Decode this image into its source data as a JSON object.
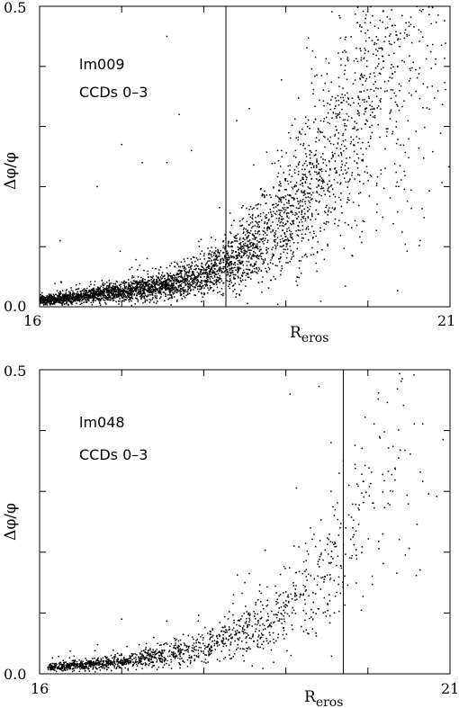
{
  "chart_data": [
    {
      "type": "scatter",
      "field": "lm009",
      "ccds": "CCDs 0–3",
      "xlabel_main": "R",
      "xlabel_sub": "eros",
      "ylabel": "Δφ/φ",
      "xlim": [
        16,
        21
      ],
      "ylim": [
        0.0,
        0.5
      ],
      "x_tick_labels": [
        "16",
        "21"
      ],
      "y_tick_labels": [
        "0.0",
        "0.5"
      ],
      "x_minor_ticks": [
        16,
        17,
        18,
        19,
        20,
        21
      ],
      "y_minor_ticks": [
        0.0,
        0.1,
        0.2,
        0.3,
        0.4,
        0.5
      ],
      "vline_x": 18.27,
      "grid": false,
      "density": "high",
      "n_points": 4200,
      "scatter_envelope": {
        "floor": 0.004,
        "scale": 0.0015,
        "rate": 1.18,
        "ridge": [
          [
            16.0,
            0.01
          ],
          [
            17.0,
            0.025
          ],
          [
            17.5,
            0.035
          ],
          [
            18.0,
            0.05
          ],
          [
            18.5,
            0.09
          ],
          [
            19.0,
            0.15
          ],
          [
            19.5,
            0.24
          ],
          [
            20.0,
            0.36
          ],
          [
            20.5,
            0.48
          ]
        ],
        "spread_frac": 0.32
      },
      "outliers": [
        [
          17.55,
          0.45
        ],
        [
          17.7,
          0.32
        ],
        [
          17.85,
          0.26
        ],
        [
          17.55,
          0.24
        ],
        [
          17.25,
          0.24
        ],
        [
          18.4,
          0.31
        ],
        [
          17.0,
          0.27
        ],
        [
          16.7,
          0.2
        ],
        [
          16.25,
          0.11
        ],
        [
          18.9,
          0.26
        ]
      ]
    },
    {
      "type": "scatter",
      "field": "lm048",
      "ccds": "CCDs 0–3",
      "xlabel_main": "R",
      "xlabel_sub": "eros",
      "ylabel": "Δφ/φ",
      "xlim": [
        16,
        21
      ],
      "ylim": [
        0.0,
        0.5
      ],
      "x_tick_labels": [
        "16",
        "21"
      ],
      "y_tick_labels": [
        "0.0",
        "0.5"
      ],
      "x_minor_ticks": [
        16,
        17,
        18,
        19,
        20,
        21
      ],
      "y_minor_ticks": [
        0.0,
        0.1,
        0.2,
        0.3,
        0.4,
        0.5
      ],
      "vline_x": 19.7,
      "grid": false,
      "density": "medium",
      "n_points": 1500,
      "scatter_envelope": {
        "floor": 0.005,
        "scale": 0.0012,
        "rate": 1.25,
        "ridge": [
          [
            16.1,
            0.01
          ],
          [
            17.0,
            0.02
          ],
          [
            18.0,
            0.04
          ],
          [
            19.0,
            0.1
          ],
          [
            19.5,
            0.16
          ],
          [
            20.0,
            0.26
          ],
          [
            20.5,
            0.4
          ],
          [
            21.0,
            0.5
          ]
        ],
        "spread_frac": 0.3
      },
      "outliers": [
        [
          19.05,
          0.46
        ],
        [
          19.55,
          0.38
        ],
        [
          19.7,
          0.35
        ],
        [
          19.65,
          0.33
        ],
        [
          19.55,
          0.3
        ],
        [
          19.6,
          0.27
        ],
        [
          19.3,
          0.24
        ],
        [
          19.1,
          0.21
        ],
        [
          18.5,
          0.15
        ],
        [
          17.3,
          0.05
        ],
        [
          17.0,
          0.09
        ]
      ]
    }
  ]
}
